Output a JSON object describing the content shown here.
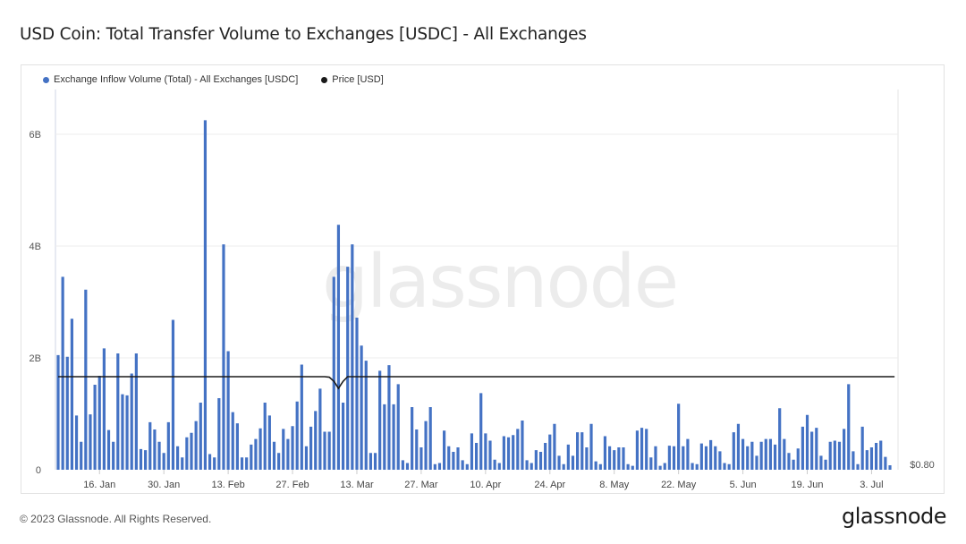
{
  "title": "USD Coin: Total Transfer Volume to Exchanges [USDC] - All Exchanges",
  "footer": "© 2023 Glassnode. All Rights Reserved.",
  "brand": "glassnode",
  "watermark": "glassnode",
  "colors": {
    "bar": "#4472c4",
    "price": "#1a1a1a",
    "grid": "#ececec"
  },
  "chart_data": {
    "type": "bar",
    "legend": [
      {
        "label": "Exchange Inflow Volume (Total) - All Exchanges [USDC]",
        "color": "#4472c4"
      },
      {
        "label": "Price [USD]",
        "color": "#1a1a1a"
      }
    ],
    "x_ticks": [
      "16. Jan",
      "30. Jan",
      "13. Feb",
      "27. Feb",
      "13. Mar",
      "27. Mar",
      "10. Apr",
      "24. Apr",
      "8. May",
      "22. May",
      "5. Jun",
      "19. Jun",
      "3. Jul"
    ],
    "y_ticks": [
      "0",
      "2B",
      "4B",
      "6B"
    ],
    "ylim": [
      0,
      6800000000
    ],
    "y2_label": "$0.80",
    "series": [
      {
        "name": "Exchange Inflow Volume (Total) - All Exchanges [USDC]",
        "values": [
          2.05,
          3.45,
          2.02,
          2.7,
          0.97,
          0.5,
          3.22,
          0.99,
          1.52,
          1.68,
          2.17,
          0.71,
          0.5,
          2.08,
          1.35,
          1.33,
          1.72,
          2.08,
          0.37,
          0.35,
          0.85,
          0.72,
          0.5,
          0.3,
          0.85,
          2.68,
          0.42,
          0.22,
          0.58,
          0.66,
          0.87,
          1.2,
          6.25,
          0.28,
          0.22,
          1.28,
          4.03,
          2.12,
          1.03,
          0.83,
          0.22,
          0.22,
          0.45,
          0.55,
          0.74,
          1.2,
          0.97,
          0.5,
          0.3,
          0.73,
          0.55,
          0.78,
          1.22,
          1.88,
          0.42,
          0.77,
          1.05,
          1.45,
          0.68,
          0.68,
          3.45,
          4.38,
          1.2,
          3.63,
          4.03,
          2.72,
          2.22,
          1.95,
          0.3,
          0.3,
          1.77,
          1.17,
          1.87,
          1.17,
          1.53,
          0.17,
          0.12,
          1.12,
          0.72,
          0.4,
          0.87,
          1.12,
          0.1,
          0.12,
          0.7,
          0.42,
          0.32,
          0.4,
          0.17,
          0.1,
          0.65,
          0.48,
          1.37,
          0.65,
          0.52,
          0.18,
          0.12,
          0.6,
          0.58,
          0.62,
          0.73,
          0.88,
          0.17,
          0.12,
          0.35,
          0.32,
          0.48,
          0.63,
          0.82,
          0.25,
          0.1,
          0.45,
          0.25,
          0.67,
          0.67,
          0.4,
          0.82,
          0.15,
          0.1,
          0.6,
          0.42,
          0.35,
          0.4,
          0.4,
          0.1,
          0.07,
          0.7,
          0.75,
          0.73,
          0.22,
          0.42,
          0.07,
          0.12,
          0.43,
          0.42,
          1.18,
          0.42,
          0.55,
          0.12,
          0.1,
          0.47,
          0.42,
          0.53,
          0.42,
          0.33,
          0.12,
          0.1,
          0.67,
          0.82,
          0.55,
          0.42,
          0.5,
          0.25,
          0.5,
          0.55,
          0.55,
          0.45,
          1.1,
          0.55,
          0.3,
          0.18,
          0.38,
          0.77,
          0.98,
          0.68,
          0.75,
          0.25,
          0.18,
          0.5,
          0.52,
          0.5,
          0.73,
          1.53,
          0.33,
          0.1,
          0.77,
          0.35,
          0.4,
          0.48,
          0.52,
          0.23,
          0.08
        ]
      },
      {
        "name": "Price [USD]",
        "values": [
          1.0,
          1.0,
          1.0,
          1.0,
          1.0,
          1.0,
          1.0,
          1.0,
          1.0,
          1.0,
          1.0,
          1.0,
          1.0,
          1.0,
          1.0,
          1.0,
          1.0,
          1.0,
          1.0,
          1.0,
          1.0,
          1.0,
          1.0,
          1.0,
          1.0,
          1.0,
          1.0,
          1.0,
          1.0,
          1.0,
          1.0,
          1.0,
          1.0,
          1.0,
          1.0,
          1.0,
          1.0,
          1.0,
          1.0,
          1.0,
          1.0,
          1.0,
          1.0,
          1.0,
          1.0,
          1.0,
          1.0,
          1.0,
          1.0,
          1.0,
          1.0,
          1.0,
          1.0,
          1.0,
          1.0,
          1.0,
          1.0,
          1.0,
          1.0,
          0.999,
          0.99,
          0.975,
          0.99,
          1.0,
          1.0,
          1.0,
          1.0,
          1.0,
          1.0,
          1.0,
          1.0,
          1.0,
          1.0,
          1.0,
          1.0,
          1.0,
          1.0,
          1.0,
          1.0,
          1.0,
          1.0,
          1.0,
          1.0,
          1.0,
          1.0,
          1.0,
          1.0,
          1.0,
          1.0,
          1.0,
          1.0,
          1.0,
          1.0,
          1.0,
          1.0,
          1.0,
          1.0,
          1.0,
          1.0,
          1.0,
          1.0,
          1.0,
          1.0,
          1.0,
          1.0,
          1.0,
          1.0,
          1.0,
          1.0,
          1.0,
          1.0,
          1.0,
          1.0,
          1.0,
          1.0,
          1.0,
          1.0,
          1.0,
          1.0,
          1.0,
          1.0,
          1.0,
          1.0,
          1.0,
          1.0,
          1.0,
          1.0,
          1.0,
          1.0,
          1.0,
          1.0,
          1.0,
          1.0,
          1.0,
          1.0,
          1.0,
          1.0,
          1.0,
          1.0,
          1.0,
          1.0,
          1.0,
          1.0,
          1.0,
          1.0,
          1.0,
          1.0,
          1.0,
          1.0,
          1.0,
          1.0,
          1.0,
          1.0,
          1.0,
          1.0,
          1.0,
          1.0,
          1.0,
          1.0,
          1.0,
          1.0,
          1.0,
          1.0,
          1.0,
          1.0,
          1.0,
          1.0,
          1.0,
          1.0,
          1.0,
          1.0,
          1.0,
          1.0,
          1.0,
          1.0,
          1.0,
          1.0,
          1.0,
          1.0,
          1.0,
          1.0,
          1.0,
          1.0
        ]
      }
    ],
    "values_unit": "billions USDC",
    "grid": true,
    "legend_position": "top-left"
  }
}
